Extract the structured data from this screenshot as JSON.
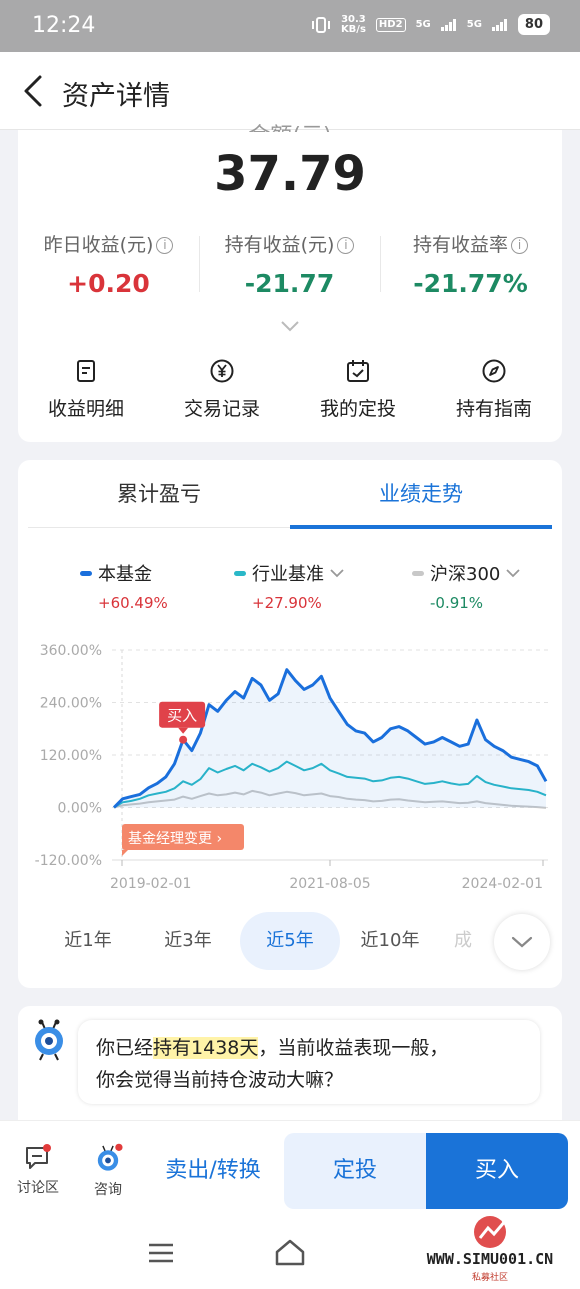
{
  "status_bar": {
    "time": "12:24",
    "net_speed": "30.3\nKB/s",
    "hd": "HD2",
    "sig1": "5G",
    "sig2": "5G",
    "battery": "80"
  },
  "nav": {
    "title": "资产详情"
  },
  "summary": {
    "amount_label": "金额(元)",
    "amount": "37.79",
    "stats": [
      {
        "label": "昨日收益(元)",
        "value": "+0.20"
      },
      {
        "label": "持有收益(元)",
        "value": "-21.77"
      },
      {
        "label": "持有收益率",
        "value": "-21.77%"
      }
    ],
    "actions": [
      {
        "label": "收益明细",
        "icon": "document-icon"
      },
      {
        "label": "交易记录",
        "icon": "yen-circle-icon"
      },
      {
        "label": "我的定投",
        "icon": "calendar-check-icon"
      },
      {
        "label": "持有指南",
        "icon": "compass-icon"
      }
    ]
  },
  "chart_section": {
    "tabs": [
      "累计盈亏",
      "业绩走势"
    ],
    "active_tab": 1,
    "legend": [
      {
        "name": "本基金",
        "pct": "+60.49%",
        "color": "#1a6fdc"
      },
      {
        "name": "行业基准",
        "pct": "+27.90%",
        "color": "#2ab8c8"
      },
      {
        "name": "沪深300",
        "pct": "-0.91%",
        "color": "#c8c8c8"
      }
    ],
    "buy_marker": "买入",
    "manager_change": "基金经理变更",
    "ranges": [
      "近1年",
      "近3年",
      "近5年",
      "近10年",
      "成"
    ],
    "active_range": 2
  },
  "chart_data": {
    "type": "line",
    "ylim": [
      -120,
      360
    ],
    "yticks": [
      "360.00%",
      "240.00%",
      "120.00%",
      "0.00%",
      "-120.00%"
    ],
    "xticks": [
      "2019-02-01",
      "2021-08-05",
      "2024-02-01"
    ],
    "series": [
      {
        "name": "本基金",
        "color": "#1a6fdc",
        "values": [
          0,
          20,
          25,
          30,
          45,
          55,
          70,
          100,
          155,
          130,
          170,
          235,
          220,
          245,
          265,
          250,
          295,
          280,
          245,
          260,
          315,
          290,
          270,
          280,
          300,
          250,
          220,
          190,
          175,
          170,
          150,
          160,
          180,
          185,
          175,
          160,
          145,
          150,
          160,
          150,
          140,
          145,
          200,
          155,
          140,
          130,
          115,
          110,
          105,
          95,
          60
        ]
      },
      {
        "name": "行业基准",
        "color": "#2ab8c8",
        "values": [
          0,
          12,
          15,
          20,
          28,
          32,
          36,
          44,
          60,
          52,
          65,
          90,
          80,
          88,
          95,
          85,
          100,
          92,
          82,
          90,
          105,
          95,
          85,
          90,
          100,
          85,
          78,
          70,
          68,
          66,
          60,
          62,
          68,
          70,
          66,
          60,
          54,
          56,
          60,
          55,
          52,
          54,
          72,
          58,
          52,
          48,
          44,
          42,
          40,
          36,
          28
        ]
      },
      {
        "name": "沪深300",
        "color": "#c8c8c8",
        "values": [
          0,
          5,
          7,
          9,
          12,
          14,
          16,
          18,
          25,
          20,
          26,
          32,
          28,
          30,
          34,
          30,
          38,
          34,
          28,
          32,
          36,
          33,
          28,
          30,
          32,
          26,
          24,
          20,
          18,
          17,
          14,
          15,
          18,
          19,
          16,
          14,
          12,
          13,
          14,
          12,
          10,
          11,
          14,
          10,
          8,
          6,
          4,
          3,
          2,
          1,
          -1
        ]
      }
    ]
  },
  "chat": {
    "pre": "你已经",
    "highlight": "持有1438天",
    "post": "，当前收益表现一般，",
    "line2": "你会觉得当前持仓波动大嘛？"
  },
  "bottom_bar": {
    "discuss": "讨论区",
    "consult": "咨询",
    "sell": "卖出/转换",
    "dingtou": "定投",
    "buy": "买入"
  },
  "watermark": {
    "site": "WWW.SIMU001.CN",
    "sub": "私募社区"
  }
}
